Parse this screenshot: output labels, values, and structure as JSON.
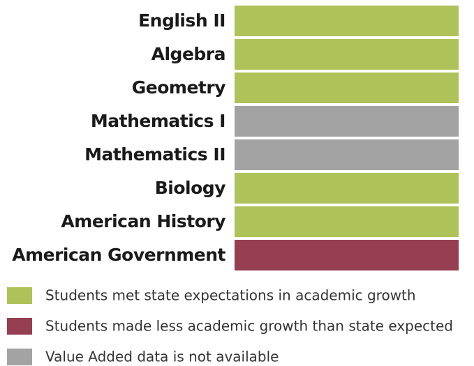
{
  "rows": [
    {
      "label": "English II",
      "status": "met"
    },
    {
      "label": "Algebra",
      "status": "met"
    },
    {
      "label": "Geometry",
      "status": "met"
    },
    {
      "label": "Mathematics I",
      "status": "na"
    },
    {
      "label": "Mathematics II",
      "status": "na"
    },
    {
      "label": "Biology",
      "status": "met"
    },
    {
      "label": "American History",
      "status": "met"
    },
    {
      "label": "American Government",
      "status": "less"
    }
  ],
  "legend": [
    {
      "key": "met",
      "color": "#afc25a",
      "label": "Students met state expectations in academic growth"
    },
    {
      "key": "less",
      "color": "#963f52",
      "label": "Students made less academic growth than state expected"
    },
    {
      "key": "na",
      "color": "#a3a3a3",
      "label": "Value Added data is not available"
    }
  ]
}
